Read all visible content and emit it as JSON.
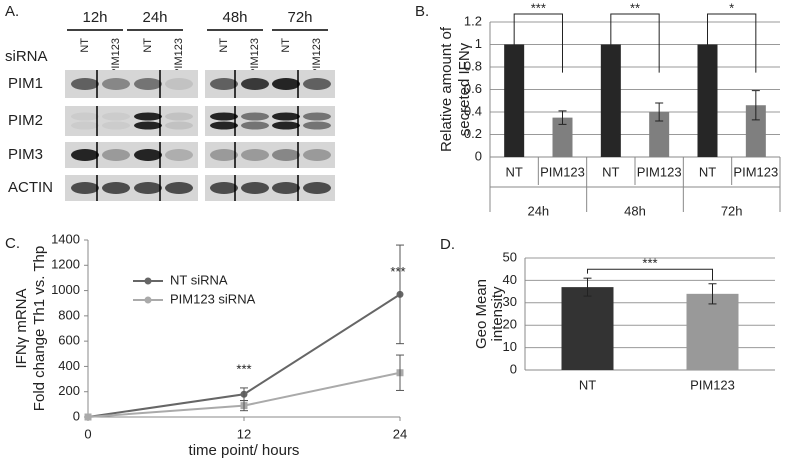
{
  "blot": {
    "label": "A.",
    "row_header": "siRNA",
    "time_points": [
      "12h",
      "24h",
      "48h",
      "72h"
    ],
    "lanes": [
      "NT",
      "PIM123",
      "NT",
      "PIM123",
      "NT",
      "PIM123",
      "NT",
      "PIM123"
    ],
    "proteins": [
      "PIM1",
      "PIM2",
      "PIM3",
      "ACTIN"
    ]
  },
  "chart_data": [
    {
      "type": "bar",
      "label": "B.",
      "y_label": [
        "Relative amount of",
        "secreted IFNγ"
      ],
      "categories": [
        "NT",
        "PIM123",
        "NT",
        "PIM123",
        "NT",
        "PIM123"
      ],
      "groups": [
        "24h",
        "48h",
        "72h"
      ],
      "values": [
        1,
        0.35,
        1,
        0.4,
        1,
        0.46
      ],
      "errors": [
        null,
        0.06,
        null,
        0.08,
        null,
        0.13
      ],
      "colors": [
        "#262626",
        "#7f7f7f",
        "#262626",
        "#7f7f7f",
        "#262626",
        "#7f7f7f"
      ],
      "ylim": [
        0,
        1.2
      ],
      "yticks": [
        0,
        0.2,
        0.4,
        0.6,
        0.8,
        1,
        1.2
      ],
      "grid": true,
      "annotations": [
        "***",
        "**",
        "*"
      ]
    },
    {
      "type": "line",
      "label": "C.",
      "y_label": [
        "IFNγ mRNA",
        "Fold change Th1 vs. Thp"
      ],
      "x_label": "time point/ hours",
      "x": [
        0,
        12,
        24
      ],
      "series": [
        {
          "name": "NT siRNA",
          "color": "#666666",
          "values": [
            0,
            180,
            970
          ],
          "errors": [
            0,
            50,
            390
          ]
        },
        {
          "name": "PIM123 siRNA",
          "color": "#aaaaaa",
          "values": [
            0,
            90,
            350
          ],
          "errors": [
            0,
            40,
            140
          ]
        }
      ],
      "xlim": [
        0,
        24
      ],
      "xticks": [
        0,
        12,
        24
      ],
      "ylim": [
        0,
        1400
      ],
      "yticks": [
        0,
        200,
        400,
        600,
        800,
        1000,
        1200,
        1400
      ],
      "grid": false,
      "annotations": [
        "***",
        "***"
      ]
    },
    {
      "type": "bar",
      "label": "D.",
      "y_label": [
        "Geo Mean",
        "intensity"
      ],
      "categories": [
        "NT",
        "PIM123"
      ],
      "values": [
        37,
        34
      ],
      "errors": [
        4,
        4.5
      ],
      "colors": [
        "#333333",
        "#999999"
      ],
      "ylim": [
        0,
        50
      ],
      "yticks": [
        0,
        10,
        20,
        30,
        40,
        50
      ],
      "grid": true,
      "annotations": [
        "***"
      ]
    }
  ]
}
